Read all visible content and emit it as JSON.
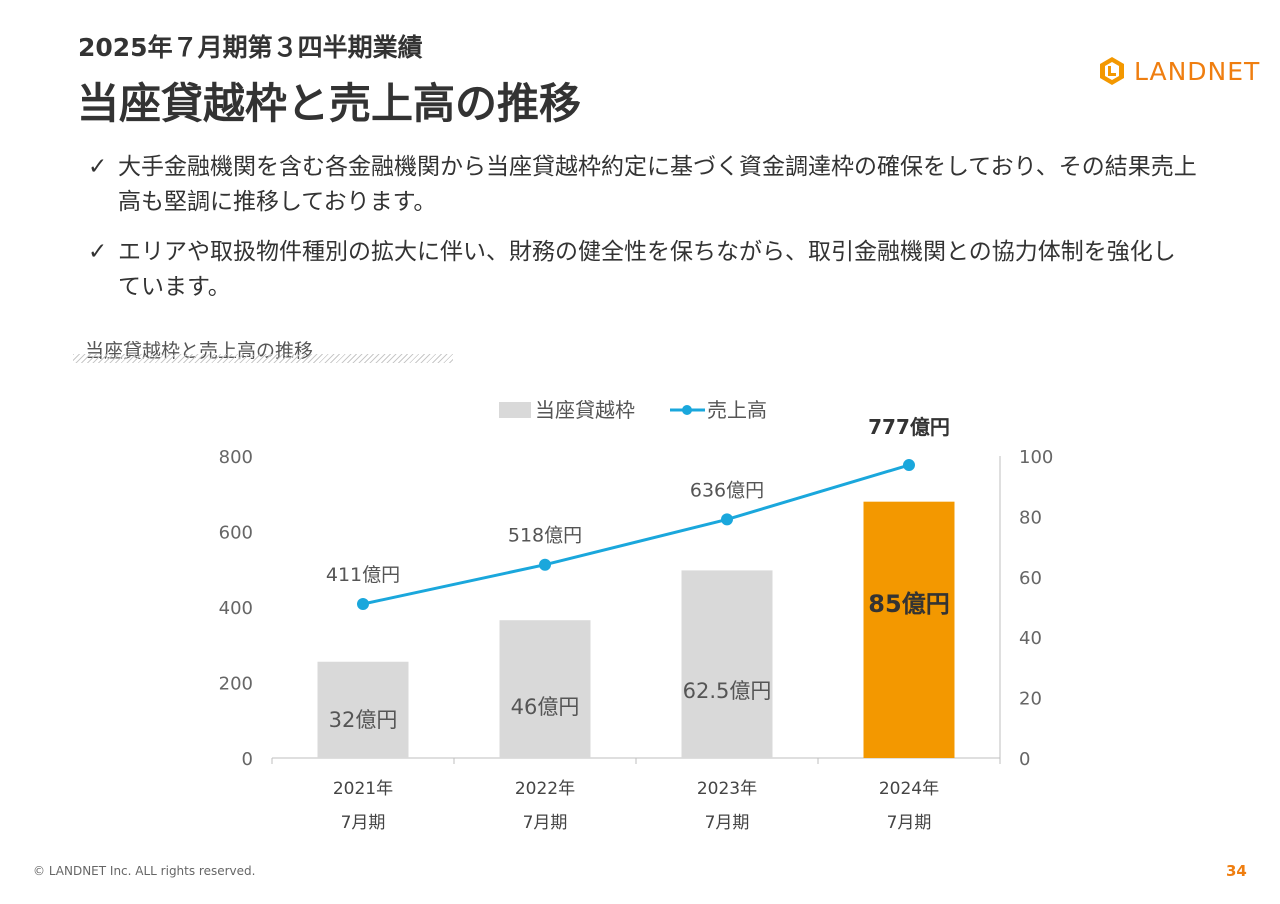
{
  "header": {
    "subtitle": "2025年７月期第３四半期業績",
    "title": "当座貸越枠と売上高の推移",
    "logo_text": "LANDNET"
  },
  "bullets": [
    "大手金融機関を含む各金融機関から当座貸越枠約定に基づく資金調達枠の確保をしており、その結果売上高も堅調に推移しております。",
    "エリアや取扱物件種別の拡大に伴い、財務の健全性を保ちながら、取引金融機関との協力体制を強化しています。"
  ],
  "check_mark": "✓",
  "section_label": "当座貸越枠と売上高の推移",
  "chart_data": {
    "type": "bar",
    "categories": [
      [
        "2021年",
        "7月期"
      ],
      [
        "2022年",
        "7月期"
      ],
      [
        "2023年",
        "7月期"
      ],
      [
        "2024年",
        "7月期"
      ]
    ],
    "series": [
      {
        "name": "当座貸越枠",
        "type": "bar",
        "axis": "left",
        "values": [
          255,
          365,
          497,
          679
        ],
        "labels": [
          "32億円",
          "46億円",
          "62.5億円",
          "85億円"
        ],
        "colors": [
          "#d9d9d9",
          "#d9d9d9",
          "#d9d9d9",
          "#f39800"
        ]
      },
      {
        "name": "売上高",
        "type": "line",
        "axis": "right",
        "values": [
          51,
          64,
          79,
          97
        ],
        "labels": [
          "411億円",
          "518億円",
          "636億円",
          "777億円"
        ],
        "color": "#1aa7dc"
      }
    ],
    "y_left": {
      "min": 0,
      "max": 800,
      "ticks": [
        "0",
        "200",
        "400",
        "600",
        "800"
      ]
    },
    "y_right": {
      "min": 0,
      "max": 100,
      "ticks": [
        "0",
        "20",
        "40",
        "60",
        "80",
        "100"
      ]
    },
    "legend_position": "top"
  },
  "footer": {
    "copyright": "© LANDNET Inc. ALL rights reserved.",
    "page_number": "34"
  },
  "colors": {
    "accent": "#f39800",
    "line": "#1aa7dc",
    "bar": "#d9d9d9",
    "text": "#333333"
  }
}
